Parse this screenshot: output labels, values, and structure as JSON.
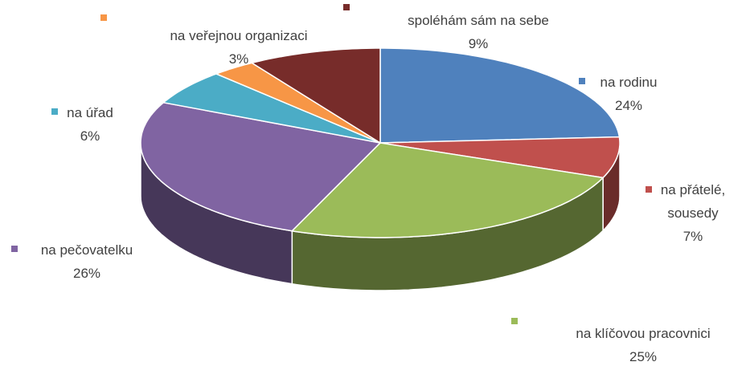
{
  "chart_data": {
    "type": "pie3d",
    "categories": [
      "na rodinu",
      "na přátelé, sousedy",
      "na klíčovou pracovnici",
      "na pečovatelku",
      "na úřad",
      "na veřejnou organizaci",
      "spoléhám sám na sebe"
    ],
    "values": [
      24,
      7,
      25,
      26,
      6,
      3,
      9
    ],
    "value_labels": [
      "24%",
      "7%",
      "25%",
      "26%",
      "6%",
      "3%",
      "9%"
    ],
    "colors": [
      "#4f81bd",
      "#c0504d",
      "#9bbb59",
      "#8064a2",
      "#4bacc6",
      "#f79646",
      "#772c2a"
    ]
  }
}
